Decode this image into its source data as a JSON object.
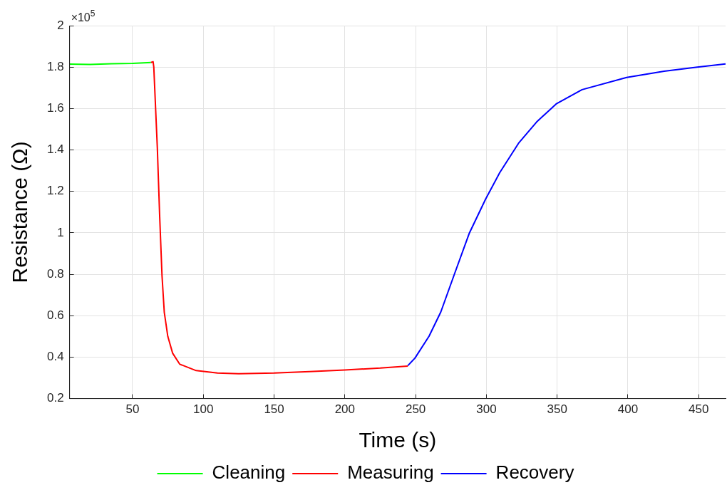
{
  "chart_data": {
    "type": "line",
    "xlabel": "Time (s)",
    "ylabel": "Resistance (Ω)",
    "annotations": [
      "×10$^{5}$"
    ],
    "xlim": [
      5.5,
      469
    ],
    "xticks": [
      50,
      100,
      150,
      200,
      250,
      300,
      350,
      400,
      450
    ],
    "ylim": [
      0.2,
      2
    ],
    "yticks": [
      0.2,
      0.4,
      0.6,
      0.8,
      1,
      1.2,
      1.4,
      1.6,
      1.8,
      2
    ],
    "grid": true,
    "legend": "bottom",
    "marker": "none",
    "line_style": "solid",
    "series": [
      {
        "name": "Cleaning",
        "color": "#00ff00",
        "x": [
          5.6,
          20,
          35,
          50,
          63
        ],
        "values": [
          1.814,
          1.813,
          1.816,
          1.818,
          1.822
        ]
      },
      {
        "name": "Measuring",
        "color": "#ff0000",
        "x": [
          63,
          64.5,
          65,
          67.5,
          69.1,
          70.8,
          72.4,
          74.9,
          78.3,
          83.3,
          94.9,
          110,
          125,
          150,
          175,
          200,
          225,
          244.5
        ],
        "values": [
          1.822,
          1.826,
          1.8,
          1.41,
          1.09,
          0.794,
          0.617,
          0.5,
          0.419,
          0.366,
          0.335,
          0.323,
          0.32,
          0.323,
          0.33,
          0.338,
          0.347,
          0.357
        ]
      },
      {
        "name": "Recovery",
        "color": "#0000ff",
        "x": [
          244.5,
          249.5,
          259.5,
          267.8,
          277.8,
          287.8,
          299.4,
          309.4,
          322.7,
          335.9,
          349.3,
          367.6,
          399.1,
          425.6,
          449,
          469
        ],
        "values": [
          0.359,
          0.395,
          0.501,
          0.618,
          0.808,
          0.996,
          1.162,
          1.29,
          1.432,
          1.538,
          1.622,
          1.691,
          1.75,
          1.78,
          1.8,
          1.815
        ]
      }
    ]
  }
}
